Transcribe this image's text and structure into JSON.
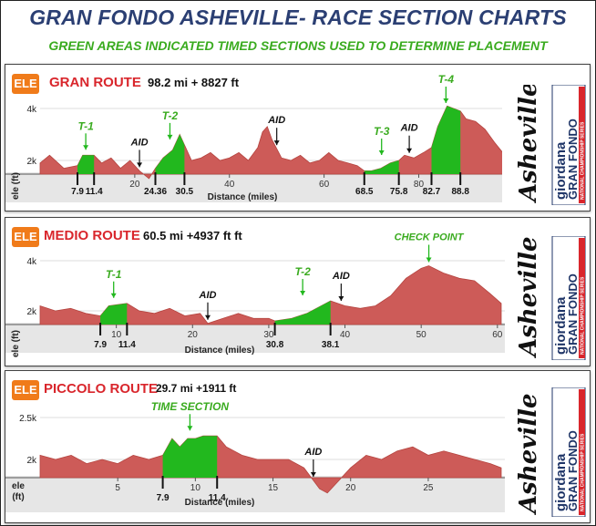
{
  "header": {
    "title": "GRAN FONDO ASHEVILLE- RACE SECTION CHARTS",
    "subtitle": "GREEN AREAS INDICATED TIMED SECTIONS USED TO DETERMINE PLACEMENT"
  },
  "logo": {
    "word": "Asheville",
    "brand": "giordana",
    "event": "GRAN FONDO",
    "series": "NATIONAL CHAMPIONSHIP SERIES"
  },
  "colors": {
    "terrain": "#cd5b58",
    "timed": "#22b81e",
    "badge": "#f07b1a",
    "route_name": "#d9262c",
    "annotation_green": "#3aab1f"
  },
  "routes": [
    {
      "badge": "ELE",
      "name": "GRAN ROUTE",
      "stats": "98.2 mi + 8827 ft"
    },
    {
      "badge": "ELE",
      "name": "MEDIO ROUTE",
      "stats": "60.5 mi +4937 ft ft"
    },
    {
      "badge": "ELE",
      "name": "PICCOLO ROUTE",
      "stats": "29.7 mi +1911 ft"
    }
  ],
  "chart_data": [
    {
      "type": "area",
      "title": "GRAN ROUTE",
      "xlabel": "Distance (miles)",
      "ylabel": "ele (ft)",
      "xlim": [
        0,
        98.2
      ],
      "ylim": [
        0,
        4000
      ],
      "yticks": [
        "4k",
        "2k"
      ],
      "xticks": [
        20,
        40,
        60,
        80
      ],
      "x": [
        0,
        2,
        5,
        7.9,
        9,
        11.4,
        13,
        15,
        17,
        19,
        21,
        23,
        24.36,
        26,
        28,
        29.5,
        30.5,
        32,
        34,
        36,
        38,
        40,
        42,
        44,
        46,
        47,
        48,
        49,
        51,
        53,
        55,
        57,
        59,
        61,
        63,
        65,
        67,
        68.5,
        70,
        72,
        74,
        75.8,
        77,
        79,
        81,
        82.7,
        84,
        86,
        88.8,
        90,
        92,
        94,
        96,
        98.2
      ],
      "y": [
        1900,
        2200,
        1700,
        1800,
        2200,
        2200,
        1900,
        2100,
        1700,
        2000,
        1600,
        1300,
        1700,
        2100,
        2400,
        3000,
        2600,
        2000,
        2100,
        2300,
        2000,
        2100,
        2300,
        2000,
        2500,
        3100,
        3300,
        2800,
        2100,
        2000,
        2200,
        1900,
        2000,
        2300,
        2000,
        1900,
        1800,
        1600,
        1600,
        1700,
        1900,
        2000,
        2200,
        2100,
        2300,
        2500,
        3300,
        4100,
        3900,
        3600,
        3500,
        3200,
        2700,
        2200
      ],
      "timed_sections": [
        {
          "label": "T-1",
          "start": 7.9,
          "end": 11.4
        },
        {
          "label": "T-2",
          "start": 24.36,
          "end": 30.5
        },
        {
          "label": "T-3",
          "start": 68.5,
          "end": 75.8
        },
        {
          "label": "T-4",
          "start": 82.7,
          "end": 88.8
        }
      ],
      "section_ticks": [
        "7.9",
        "11.4",
        "24.36",
        "30.5",
        "68.5",
        "75.8",
        "82.7",
        "88.8"
      ],
      "aid_stations": [
        {
          "label": "AID",
          "x": 21
        },
        {
          "label": "AID",
          "x": 50
        },
        {
          "label": "AID",
          "x": 78
        }
      ]
    },
    {
      "type": "area",
      "title": "MEDIO ROUTE",
      "xlabel": "Distance (miles)",
      "ylabel": "ele (ft)",
      "xlim": [
        0,
        60.5
      ],
      "ylim": [
        0,
        4000
      ],
      "yticks": [
        "4k",
        "2k"
      ],
      "xticks": [
        10,
        20,
        30,
        40,
        50,
        60
      ],
      "x": [
        0,
        2,
        4,
        6,
        7.9,
        9,
        11.4,
        13,
        15,
        17,
        19,
        21,
        22,
        24,
        26,
        28,
        30,
        30.8,
        33,
        35,
        38.1,
        40,
        42,
        44,
        46,
        48,
        50,
        51,
        53,
        55,
        57,
        59,
        60.5
      ],
      "y": [
        2200,
        2000,
        2100,
        1900,
        1800,
        2200,
        2300,
        2000,
        1900,
        2100,
        1800,
        1900,
        1500,
        1700,
        1900,
        1700,
        1700,
        1600,
        1700,
        1900,
        2400,
        2200,
        2100,
        2200,
        2600,
        3300,
        3700,
        3800,
        3500,
        3300,
        3200,
        2700,
        2300
      ],
      "timed_sections": [
        {
          "label": "T-1",
          "start": 7.9,
          "end": 11.4
        },
        {
          "label": "T-2",
          "start": 30.8,
          "end": 38.1
        }
      ],
      "section_ticks": [
        "7.9",
        "11.4",
        "30.8",
        "38.1"
      ],
      "aid_stations": [
        {
          "label": "AID",
          "x": 22
        },
        {
          "label": "AID",
          "x": 39.5
        }
      ],
      "annotations": [
        {
          "label": "CHECK POINT",
          "x": 51
        }
      ]
    },
    {
      "type": "area",
      "title": "PICCOLO ROUTE",
      "xlabel": "Distance (miles)",
      "ylabel": "ele (ft)",
      "xlim": [
        0,
        29.7
      ],
      "ylim": [
        0,
        2500
      ],
      "yticks": [
        "2.5k",
        "2k"
      ],
      "xticks": [
        5,
        10,
        15,
        20,
        25
      ],
      "x": [
        0,
        1,
        2,
        3,
        4,
        5,
        6,
        7,
        7.9,
        8.5,
        9,
        9.5,
        10,
        10.5,
        11.4,
        12,
        13,
        14,
        15,
        16,
        17,
        18,
        18.5,
        19,
        20,
        21,
        22,
        23,
        24,
        25,
        26,
        27,
        28,
        29,
        29.7
      ],
      "y": [
        2050,
        2000,
        2050,
        1950,
        2000,
        1950,
        2050,
        2000,
        2050,
        2250,
        2150,
        2250,
        2250,
        2280,
        2280,
        2150,
        2050,
        2000,
        2000,
        2000,
        1900,
        1650,
        1600,
        1700,
        1900,
        2050,
        2000,
        2100,
        2150,
        2050,
        2100,
        2050,
        2000,
        1950,
        1900
      ],
      "timed_sections": [
        {
          "label": "TIME SECTION",
          "start": 7.9,
          "end": 11.4
        }
      ],
      "section_ticks": [
        "7.9",
        "11.4"
      ],
      "aid_stations": [
        {
          "label": "AID",
          "x": 17.6
        }
      ]
    }
  ]
}
